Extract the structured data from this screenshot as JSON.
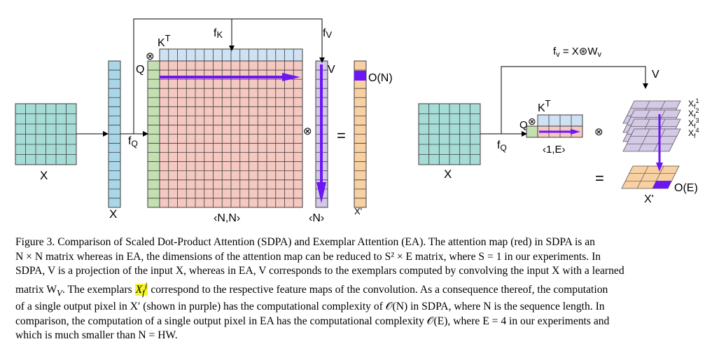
{
  "diagram": {
    "sdpa": {
      "input_label": "X",
      "seq_label": "X",
      "fq_label": "f",
      "fq_sub": "Q",
      "fk_label": "f",
      "fk_sub": "K",
      "fv_label": "f",
      "fv_sub": "V",
      "q_label": "Q",
      "kt_label": "K",
      "kt_sup": "T",
      "otimes1": "⊗",
      "otimes2": "⊗",
      "v_label": "V",
      "equals": "=",
      "on_label": "O(N)",
      "nn_label": "‹N,N›",
      "n_label": "‹N›",
      "xprime_label": "X'"
    },
    "ea": {
      "input_label": "X",
      "fq_label": "f",
      "fq_sub": "Q",
      "fv_eq": "f",
      "fv_eq_sub": "v",
      "fv_eq_rest": " = X⊛W",
      "fv_eq_rest_sub": "v",
      "v_label": "V",
      "q_label": "Q",
      "kt_label": "K",
      "kt_sup": "T",
      "otimes1": "⊗",
      "otimes2": "⊗",
      "e_label": "‹1,E›",
      "equals": "=",
      "oe_label": "O(E)",
      "xprime_label": "X'",
      "exemplars": [
        {
          "base": "X",
          "sub": "f",
          "sup": "1"
        },
        {
          "base": "X",
          "sub": "f",
          "sup": "2"
        },
        {
          "base": "X",
          "sub": "f",
          "sup": "3"
        },
        {
          "base": "X",
          "sub": "f",
          "sup": "4"
        }
      ]
    },
    "colors": {
      "teal": "#a6dcd6",
      "blue": "#a9d7ea",
      "green": "#c4dfb1",
      "red": "#f5c9c2",
      "lightblue": "#cfe2f4",
      "lavender": "#d4c9e6",
      "orange": "#f8d0a2",
      "purple": "#6c16f6"
    }
  },
  "caption": {
    "line1": "Figure 3.  Comparison of Scaled Dot-Product Attention (SDPA) and Exemplar Attention (EA). The attention map (red) in SDPA is an",
    "line2": "N × N matrix whereas in EA, the dimensions of the attention map can be reduced to S² × E matrix, where S = 1 in our experiments. In",
    "line3": "SDPA, V is a projection of the input X, whereas in EA, V corresponds to the exemplars computed by convolving the input X with a learned",
    "line4a": "matrix W",
    "line4a_sub": "V",
    "line4b": ". The exemplars ",
    "line4_hl": "X",
    "line4_hl_sub": "f",
    "line4_hl_sup": "i",
    "line4c": " correspond to the respective feature maps of the convolution. As a consequence thereof, the computation",
    "line5": "of a single output pixel in X′ (shown in purple) has the computational complexity of 𝒪(N) in SDPA, where N is the sequence length. In",
    "line6": "comparison, the computation of a single output pixel in EA has the computational complexity 𝒪(E), where E = 4 in our experiments and",
    "line7": "which is much smaller than N = HW."
  }
}
